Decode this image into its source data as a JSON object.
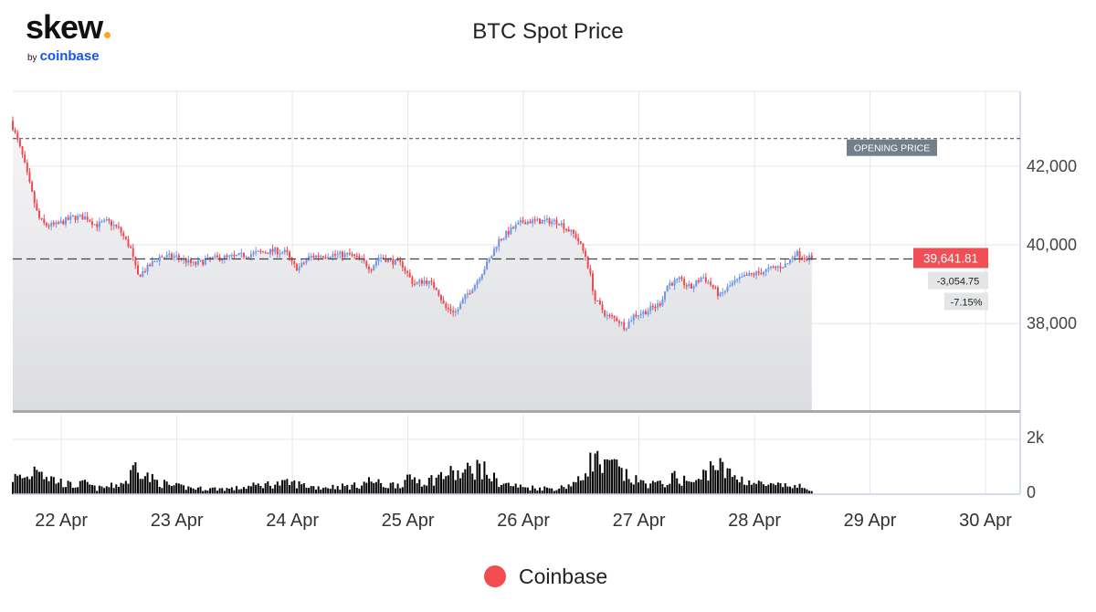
{
  "brand": {
    "word": "skew",
    "by": "by",
    "name": "coinbase",
    "dot_color": "#f5a623"
  },
  "colors": {
    "up": "#6f97e8",
    "down": "#f0484f",
    "volume": "#000000",
    "last_price_badge": "#ef4f55",
    "opening_badge": "#707f8a",
    "legend": "#f24b50"
  },
  "chart_data": {
    "type": "candlestick",
    "title": "BTC Spot Price",
    "series": [
      {
        "name": "Coinbase"
      }
    ],
    "opening_price": 42700,
    "opening_price_label": "OPENING PRICE",
    "last_price": 39641.81,
    "last_price_label": "39,641.81",
    "change_label": "-3,054.75",
    "change_pct_label": "-7.15%",
    "price_axis": {
      "ylim": [
        35800,
        43900
      ],
      "ticks": [
        38000,
        40000,
        42000
      ],
      "tick_labels": [
        "38,000",
        "40,000",
        "42,000"
      ]
    },
    "volume_axis": {
      "ylim": [
        0,
        2900
      ],
      "ticks": [
        0,
        2000
      ],
      "tick_labels": [
        "0",
        "2k"
      ]
    },
    "x_axis": {
      "xlim": [
        21.58,
        30.3
      ],
      "ticks": [
        22,
        23,
        24,
        25,
        26,
        27,
        28,
        29,
        30
      ],
      "tick_labels": [
        "22 Apr",
        "23 Apr",
        "24 Apr",
        "25 Apr",
        "26 Apr",
        "27 Apr",
        "28 Apr",
        "29 Apr",
        "30 Apr"
      ]
    },
    "grid": true,
    "legend_position": "bottom-center",
    "data_start_day": 21.58,
    "candle_interval_days": 0.02083,
    "close_path": [
      [
        21.58,
        43000
      ],
      [
        21.66,
        42300
      ],
      [
        21.72,
        41600
      ],
      [
        21.8,
        40700
      ],
      [
        21.86,
        40500
      ],
      [
        21.95,
        40500
      ],
      [
        22.1,
        40700
      ],
      [
        22.22,
        40700
      ],
      [
        22.3,
        40500
      ],
      [
        22.4,
        40600
      ],
      [
        22.5,
        40400
      ],
      [
        22.6,
        39900
      ],
      [
        22.66,
        39200
      ],
      [
        22.74,
        39400
      ],
      [
        22.85,
        39700
      ],
      [
        23.0,
        39700
      ],
      [
        23.15,
        39500
      ],
      [
        23.3,
        39650
      ],
      [
        23.5,
        39700
      ],
      [
        23.7,
        39800
      ],
      [
        23.85,
        39850
      ],
      [
        23.95,
        39800
      ],
      [
        24.0,
        39500
      ],
      [
        24.05,
        39400
      ],
      [
        24.15,
        39700
      ],
      [
        24.3,
        39750
      ],
      [
        24.5,
        39750
      ],
      [
        24.6,
        39600
      ],
      [
        24.68,
        39400
      ],
      [
        24.75,
        39700
      ],
      [
        24.85,
        39600
      ],
      [
        24.95,
        39500
      ],
      [
        25.05,
        39000
      ],
      [
        25.15,
        39100
      ],
      [
        25.25,
        38900
      ],
      [
        25.32,
        38400
      ],
      [
        25.42,
        38300
      ],
      [
        25.5,
        38700
      ],
      [
        25.58,
        39000
      ],
      [
        25.66,
        39400
      ],
      [
        25.72,
        39700
      ],
      [
        25.78,
        40100
      ],
      [
        25.9,
        40400
      ],
      [
        26.0,
        40600
      ],
      [
        26.1,
        40600
      ],
      [
        26.2,
        40600
      ],
      [
        26.3,
        40600
      ],
      [
        26.38,
        40400
      ],
      [
        26.46,
        40200
      ],
      [
        26.54,
        39700
      ],
      [
        26.58,
        39200
      ],
      [
        26.62,
        38600
      ],
      [
        26.72,
        38200
      ],
      [
        26.82,
        38100
      ],
      [
        26.88,
        37900
      ],
      [
        26.95,
        38200
      ],
      [
        27.05,
        38300
      ],
      [
        27.18,
        38500
      ],
      [
        27.25,
        39000
      ],
      [
        27.35,
        39100
      ],
      [
        27.45,
        38900
      ],
      [
        27.55,
        39200
      ],
      [
        27.62,
        39000
      ],
      [
        27.7,
        38700
      ],
      [
        27.8,
        39000
      ],
      [
        27.92,
        39200
      ],
      [
        28.05,
        39300
      ],
      [
        28.15,
        39400
      ],
      [
        28.28,
        39500
      ],
      [
        28.35,
        39800
      ],
      [
        28.42,
        39700
      ],
      [
        28.5,
        39650
      ]
    ],
    "volume_path": [
      [
        21.58,
        600
      ],
      [
        21.72,
        600
      ],
      [
        21.8,
        1200
      ],
      [
        21.86,
        700
      ],
      [
        21.95,
        500
      ],
      [
        22.1,
        300
      ],
      [
        22.22,
        400
      ],
      [
        22.3,
        200
      ],
      [
        22.45,
        300
      ],
      [
        22.58,
        500
      ],
      [
        22.62,
        900
      ],
      [
        22.66,
        1200
      ],
      [
        22.72,
        700
      ],
      [
        22.8,
        500
      ],
      [
        22.95,
        300
      ],
      [
        23.2,
        200
      ],
      [
        23.5,
        200
      ],
      [
        23.75,
        350
      ],
      [
        24.0,
        400
      ],
      [
        24.2,
        250
      ],
      [
        24.55,
        300
      ],
      [
        24.68,
        500
      ],
      [
        24.8,
        300
      ],
      [
        24.95,
        400
      ],
      [
        25.05,
        600
      ],
      [
        25.15,
        450
      ],
      [
        25.25,
        600
      ],
      [
        25.35,
        750
      ],
      [
        25.45,
        700
      ],
      [
        25.55,
        900
      ],
      [
        25.62,
        1000
      ],
      [
        25.7,
        700
      ],
      [
        25.8,
        400
      ],
      [
        26.0,
        250
      ],
      [
        26.3,
        200
      ],
      [
        26.5,
        500
      ],
      [
        26.56,
        1100
      ],
      [
        26.62,
        1300
      ],
      [
        26.7,
        900
      ],
      [
        26.78,
        1100
      ],
      [
        26.86,
        700
      ],
      [
        26.96,
        500
      ],
      [
        27.05,
        400
      ],
      [
        27.2,
        350
      ],
      [
        27.3,
        600
      ],
      [
        27.4,
        500
      ],
      [
        27.5,
        400
      ],
      [
        27.6,
        900
      ],
      [
        27.66,
        1200
      ],
      [
        27.74,
        800
      ],
      [
        27.85,
        600
      ],
      [
        28.0,
        400
      ],
      [
        28.15,
        300
      ],
      [
        28.3,
        300
      ],
      [
        28.42,
        250
      ],
      [
        28.5,
        200
      ]
    ],
    "noise_seed": 7
  },
  "legend": {
    "label": "Coinbase"
  }
}
